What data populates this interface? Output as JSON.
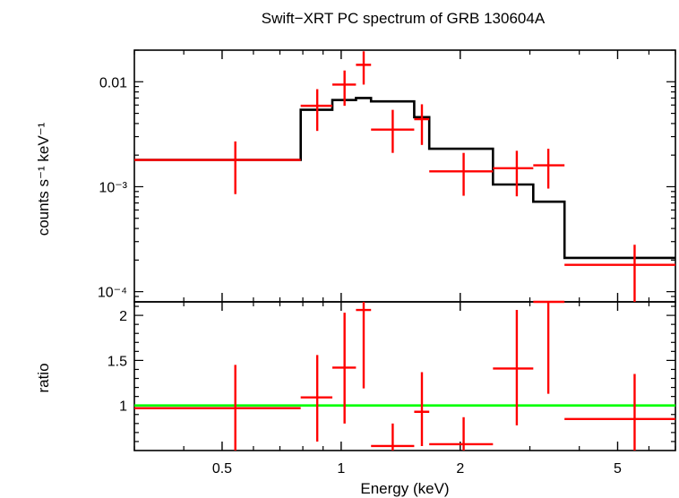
{
  "chart_data": [
    {
      "type": "scatter",
      "panel": "spectrum",
      "title": "Swift−XRT PC spectrum of GRB 130604A",
      "xlabel": "Energy (keV)",
      "ylabel": "counts s⁻¹ keV⁻¹",
      "xscale": "log",
      "yscale": "log",
      "xlim": [
        0.3,
        7.0
      ],
      "ylim": [
        8e-05,
        0.02
      ],
      "y_ticks": [
        {
          "value": 0.01,
          "label": "0.01"
        },
        {
          "value": 0.001,
          "label": "10⁻³"
        },
        {
          "value": 0.0001,
          "label": "10⁻⁴"
        }
      ],
      "series": [
        {
          "kind": "data",
          "color": "#ff0000",
          "points": [
            {
              "x": 0.54,
              "xlo": 0.3,
              "xhi": 0.79,
              "y": 0.0018,
              "ylo": 0.00085,
              "yhi": 0.0027
            },
            {
              "x": 0.87,
              "xlo": 0.79,
              "xhi": 0.95,
              "y": 0.0059,
              "ylo": 0.0034,
              "yhi": 0.0085
            },
            {
              "x": 1.02,
              "xlo": 0.95,
              "xhi": 1.09,
              "y": 0.0094,
              "ylo": 0.0059,
              "yhi": 0.0128
            },
            {
              "x": 1.14,
              "xlo": 1.09,
              "xhi": 1.19,
              "y": 0.0145,
              "ylo": 0.0094,
              "yhi": 0.0195
            },
            {
              "x": 1.35,
              "xlo": 1.19,
              "xhi": 1.53,
              "y": 0.0035,
              "ylo": 0.0021,
              "yhi": 0.0054
            },
            {
              "x": 1.6,
              "xlo": 1.53,
              "xhi": 1.67,
              "y": 0.0044,
              "ylo": 0.0025,
              "yhi": 0.0061
            },
            {
              "x": 2.04,
              "xlo": 1.67,
              "xhi": 2.42,
              "y": 0.0014,
              "ylo": 0.00082,
              "yhi": 0.0021
            },
            {
              "x": 2.78,
              "xlo": 2.42,
              "xhi": 3.06,
              "y": 0.0015,
              "ylo": 0.00081,
              "yhi": 0.0022
            },
            {
              "x": 3.34,
              "xlo": 3.06,
              "xhi": 3.67,
              "y": 0.0016,
              "ylo": 0.00096,
              "yhi": 0.0023
            },
            {
              "x": 5.52,
              "xlo": 3.67,
              "xhi": 7.0,
              "y": 0.00018,
              "ylo": 8e-05,
              "yhi": 0.00028
            }
          ]
        },
        {
          "kind": "model",
          "color": "#000000",
          "steps": [
            {
              "xlo": 0.3,
              "xhi": 0.79,
              "y": 0.0018
            },
            {
              "xlo": 0.79,
              "xhi": 0.95,
              "y": 0.0054
            },
            {
              "xlo": 0.95,
              "xhi": 1.09,
              "y": 0.0067
            },
            {
              "xlo": 1.09,
              "xhi": 1.19,
              "y": 0.007
            },
            {
              "xlo": 1.19,
              "xhi": 1.53,
              "y": 0.0065
            },
            {
              "xlo": 1.53,
              "xhi": 1.67,
              "y": 0.0046
            },
            {
              "xlo": 1.67,
              "xhi": 2.42,
              "y": 0.0023
            },
            {
              "xlo": 2.42,
              "xhi": 3.06,
              "y": 0.00105
            },
            {
              "xlo": 3.06,
              "xhi": 3.67,
              "y": 0.00072
            },
            {
              "xlo": 3.67,
              "xhi": 7.0,
              "y": 0.00021
            }
          ]
        }
      ]
    },
    {
      "type": "scatter",
      "panel": "ratio",
      "xlabel": "Energy (keV)",
      "ylabel": "ratio",
      "xscale": "log",
      "xlim": [
        0.3,
        7.0
      ],
      "ylim": [
        0.5,
        2.15
      ],
      "x_ticks": [
        {
          "value": 0.5,
          "label": "0.5"
        },
        {
          "value": 1,
          "label": "1"
        },
        {
          "value": 2,
          "label": "2"
        },
        {
          "value": 5,
          "label": "5"
        }
      ],
      "y_ticks": [
        {
          "value": 1,
          "label": "1"
        },
        {
          "value": 1.5,
          "label": "1.5"
        },
        {
          "value": 2,
          "label": "2"
        }
      ],
      "reference_line": {
        "y": 1,
        "color": "#00ff00"
      },
      "series": [
        {
          "kind": "data",
          "color": "#ff0000",
          "points": [
            {
              "x": 0.54,
              "xlo": 0.3,
              "xhi": 0.79,
              "y": 0.97,
              "ylo": 0.45,
              "yhi": 1.45
            },
            {
              "x": 0.87,
              "xlo": 0.79,
              "xhi": 0.95,
              "y": 1.09,
              "ylo": 0.6,
              "yhi": 1.56
            },
            {
              "x": 1.02,
              "xlo": 0.95,
              "xhi": 1.09,
              "y": 1.42,
              "ylo": 0.8,
              "yhi": 2.03
            },
            {
              "x": 1.14,
              "xlo": 1.09,
              "xhi": 1.19,
              "y": 2.06,
              "ylo": 1.19,
              "yhi": 2.2
            },
            {
              "x": 1.35,
              "xlo": 1.19,
              "xhi": 1.53,
              "y": 0.55,
              "ylo": 0.33,
              "yhi": 0.8
            },
            {
              "x": 1.6,
              "xlo": 1.53,
              "xhi": 1.67,
              "y": 0.93,
              "ylo": 0.55,
              "yhi": 1.37
            },
            {
              "x": 2.04,
              "xlo": 1.67,
              "xhi": 2.42,
              "y": 0.57,
              "ylo": 0.36,
              "yhi": 0.87
            },
            {
              "x": 2.78,
              "xlo": 2.42,
              "xhi": 3.06,
              "y": 1.41,
              "ylo": 0.78,
              "yhi": 2.06
            },
            {
              "x": 3.34,
              "xlo": 3.06,
              "xhi": 3.67,
              "y": 2.15,
              "ylo": 1.13,
              "yhi": 2.25
            },
            {
              "x": 5.52,
              "xlo": 3.67,
              "xhi": 7.0,
              "y": 0.85,
              "ylo": 0.38,
              "yhi": 1.35
            }
          ]
        }
      ]
    }
  ]
}
